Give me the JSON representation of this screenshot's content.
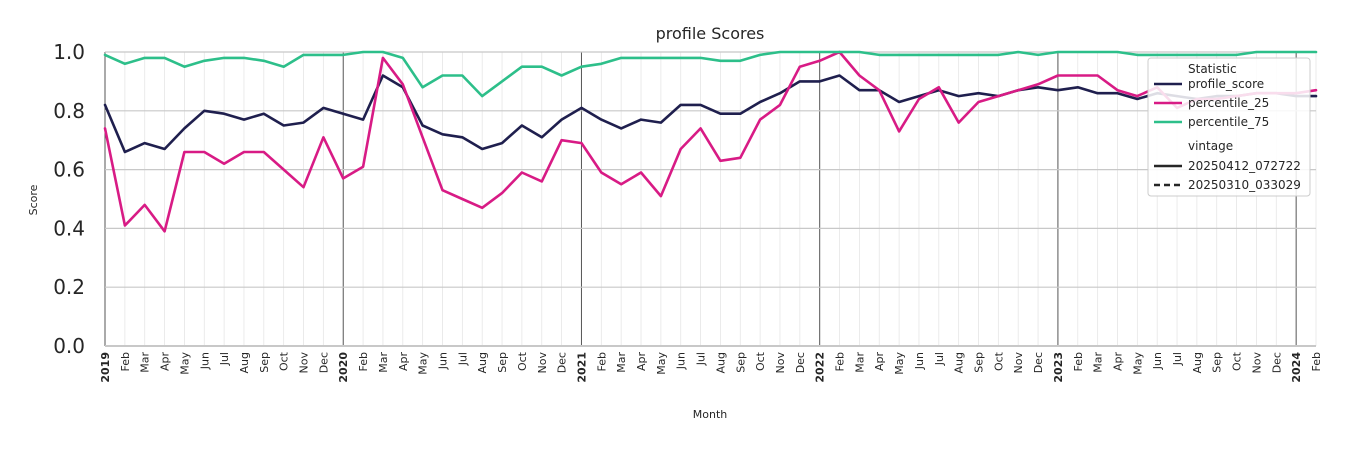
{
  "chart_data": {
    "type": "line",
    "title": "profile Scores",
    "xlabel": "Month",
    "ylabel": "Score",
    "ylim": [
      0,
      1.0
    ],
    "yticks": [
      "0.0",
      "0.2",
      "0.4",
      "0.6",
      "0.8",
      "1.0"
    ],
    "grid": true,
    "x": [
      "2019",
      "Feb",
      "Mar",
      "Apr",
      "May",
      "Jun",
      "Jul",
      "Aug",
      "Sep",
      "Oct",
      "Nov",
      "Dec",
      "2020",
      "Feb",
      "Mar",
      "Apr",
      "May",
      "Jun",
      "Jul",
      "Aug",
      "Sep",
      "Oct",
      "Nov",
      "Dec",
      "2021",
      "Feb",
      "Mar",
      "Apr",
      "May",
      "Jun",
      "Jul",
      "Aug",
      "Sep",
      "Oct",
      "Nov",
      "Dec",
      "2022",
      "Feb",
      "Mar",
      "Apr",
      "May",
      "Jun",
      "Jul",
      "Aug",
      "Sep",
      "Oct",
      "Nov",
      "Dec",
      "2023",
      "Feb",
      "Mar",
      "Apr",
      "May",
      "Jun",
      "Jul",
      "Aug",
      "Sep",
      "Oct",
      "Nov",
      "Dec",
      "2024",
      "Feb"
    ],
    "series": [
      {
        "name": "profile_score",
        "color": "#1f1f4e",
        "values": [
          0.82,
          0.66,
          0.69,
          0.67,
          0.74,
          0.8,
          0.79,
          0.77,
          0.79,
          0.75,
          0.76,
          0.81,
          0.79,
          0.77,
          0.92,
          0.88,
          0.75,
          0.72,
          0.71,
          0.67,
          0.69,
          0.75,
          0.71,
          0.77,
          0.81,
          0.77,
          0.74,
          0.77,
          0.76,
          0.82,
          0.82,
          0.79,
          0.79,
          0.83,
          0.86,
          0.9,
          0.9,
          0.92,
          0.87,
          0.87,
          0.83,
          0.85,
          0.87,
          0.85,
          0.86,
          0.85,
          0.87,
          0.88,
          0.87,
          0.88,
          0.86,
          0.86,
          0.84,
          0.86,
          0.85,
          0.84,
          0.85,
          0.85,
          0.86,
          0.86,
          0.85,
          0.85
        ]
      },
      {
        "name": "percentile_25",
        "color": "#d81b85",
        "values": [
          0.74,
          0.41,
          0.48,
          0.39,
          0.66,
          0.66,
          0.62,
          0.66,
          0.66,
          0.6,
          0.54,
          0.71,
          0.57,
          0.61,
          0.98,
          0.89,
          0.71,
          0.53,
          0.5,
          0.47,
          0.52,
          0.59,
          0.56,
          0.7,
          0.69,
          0.59,
          0.55,
          0.59,
          0.51,
          0.67,
          0.74,
          0.63,
          0.64,
          0.77,
          0.82,
          0.95,
          0.97,
          1.0,
          0.92,
          0.87,
          0.73,
          0.84,
          0.88,
          0.76,
          0.83,
          0.85,
          0.87,
          0.89,
          0.92,
          0.92,
          0.92,
          0.87,
          0.85,
          0.88,
          0.81,
          0.84,
          0.84,
          0.85,
          0.86,
          0.86,
          0.86,
          0.87
        ]
      },
      {
        "name": "percentile_75",
        "color": "#2dbf8a",
        "values": [
          0.99,
          0.96,
          0.98,
          0.98,
          0.95,
          0.97,
          0.98,
          0.98,
          0.97,
          0.95,
          0.99,
          0.99,
          0.99,
          1.0,
          1.0,
          0.98,
          0.88,
          0.92,
          0.92,
          0.85,
          0.9,
          0.95,
          0.95,
          0.92,
          0.95,
          0.96,
          0.98,
          0.98,
          0.98,
          0.98,
          0.98,
          0.97,
          0.97,
          0.99,
          1.0,
          1.0,
          1.0,
          1.0,
          1.0,
          0.99,
          0.99,
          0.99,
          0.99,
          0.99,
          0.99,
          0.99,
          1.0,
          0.99,
          1.0,
          1.0,
          1.0,
          1.0,
          0.99,
          0.99,
          0.99,
          0.99,
          0.99,
          0.99,
          1.0,
          1.0,
          1.0,
          1.0
        ]
      }
    ],
    "legend": {
      "placement": "top-right",
      "group1_title": "Statistic",
      "group2_title": "vintage",
      "vintages": [
        {
          "label": "20250412_072722",
          "style": "solid"
        },
        {
          "label": "20250310_033029",
          "style": "dashed"
        }
      ]
    }
  }
}
